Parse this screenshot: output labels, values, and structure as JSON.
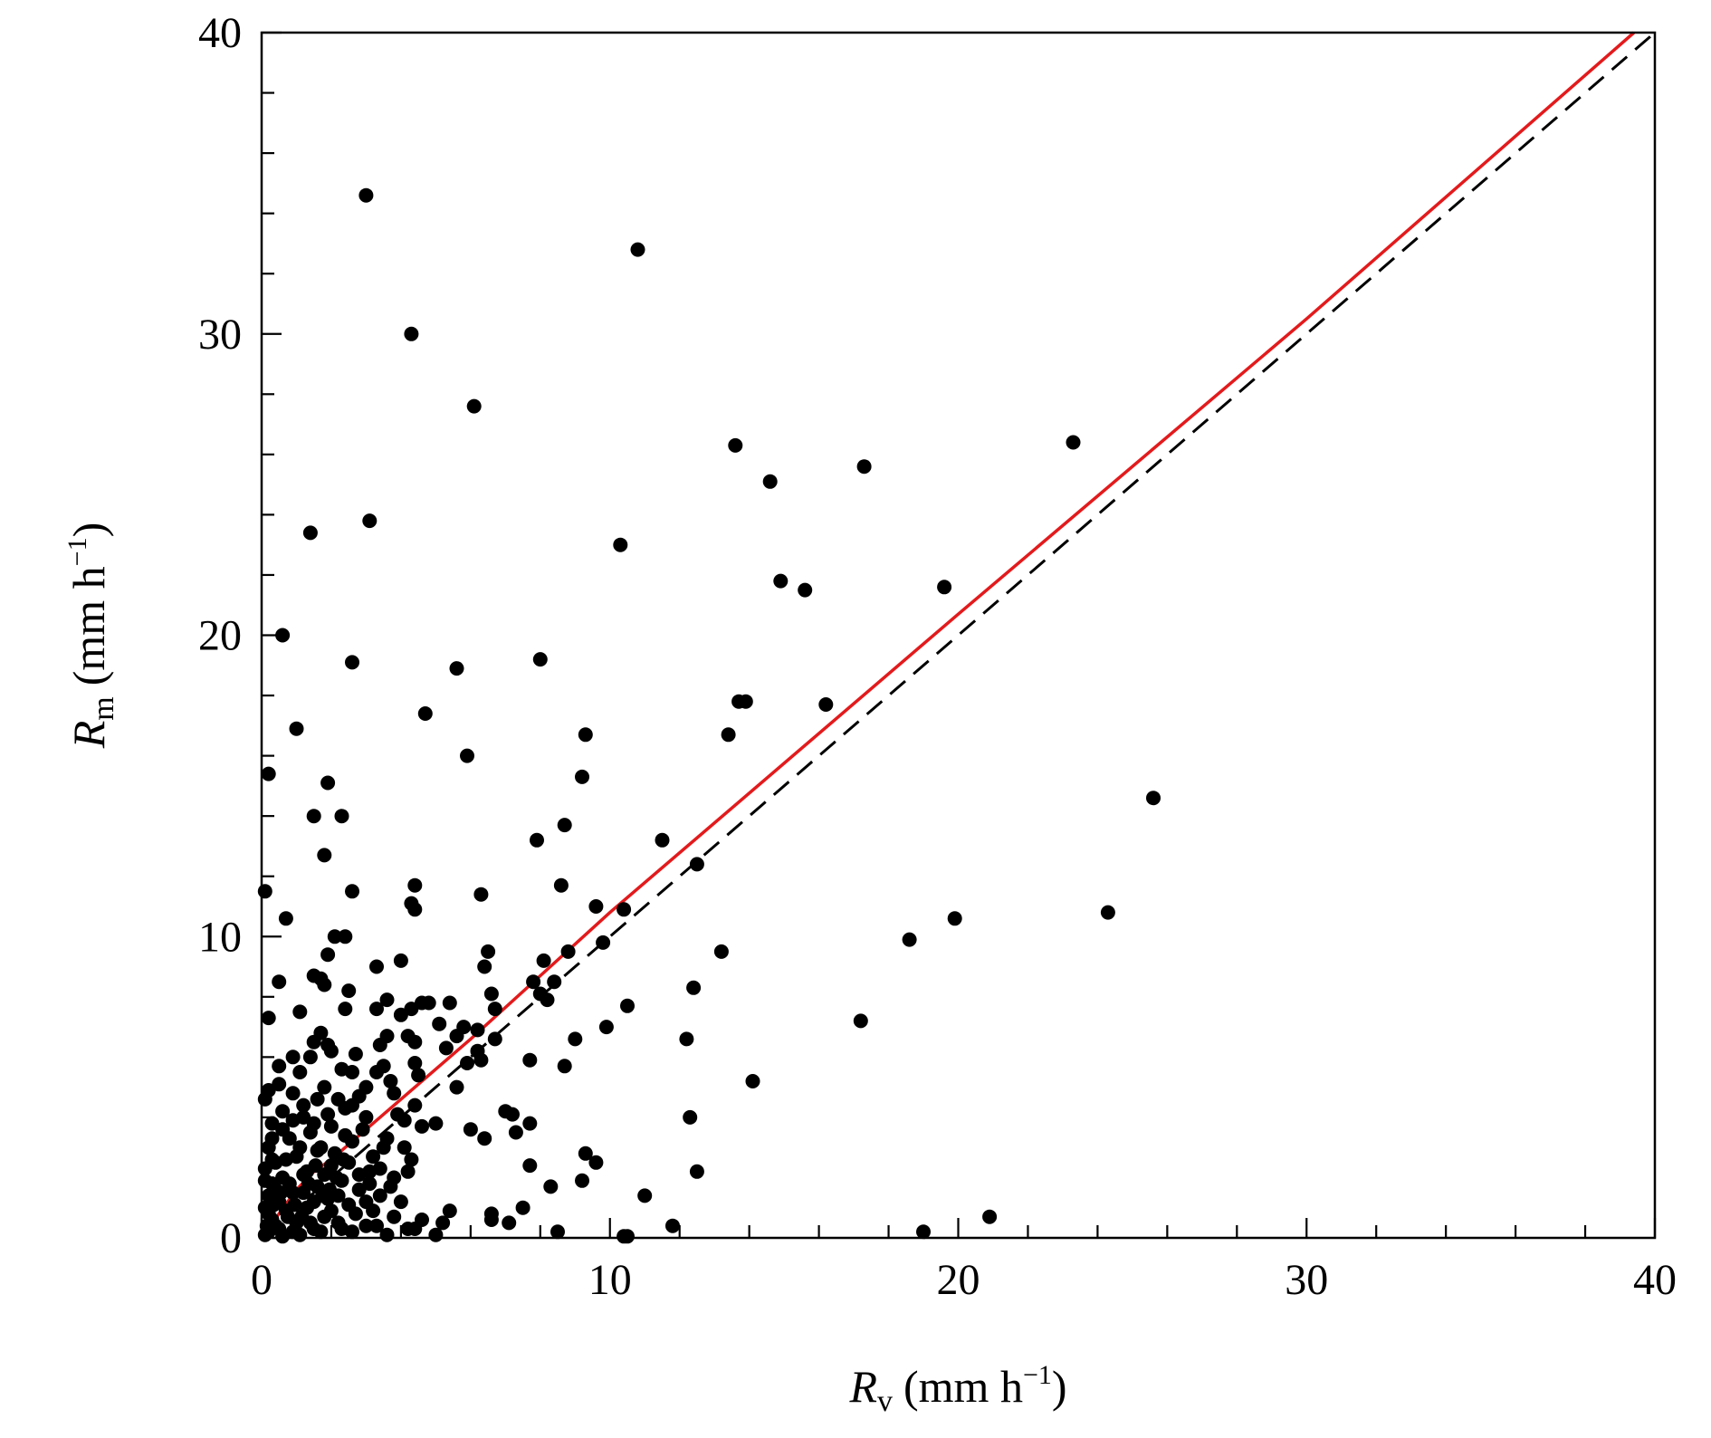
{
  "chart_data": {
    "type": "scatter",
    "xlabel": {
      "symbol": "R",
      "subscript": "v",
      "unit_pre": "(mm h",
      "unit_sup": "−1",
      "unit_post": ")"
    },
    "ylabel": {
      "symbol": "R",
      "subscript": "m",
      "unit_pre": "(mm h",
      "unit_sup": "−1",
      "unit_post": ")"
    },
    "xlim": [
      0,
      40
    ],
    "ylim": [
      0,
      40
    ],
    "x_ticks": [
      0,
      10,
      20,
      30,
      40
    ],
    "y_ticks": [
      0,
      10,
      20,
      30,
      40
    ],
    "x_tick_labels": [
      "0",
      "10",
      "20",
      "30",
      "40"
    ],
    "y_tick_labels": [
      "0",
      "10",
      "20",
      "30",
      "40"
    ],
    "minor_tick_step": 2,
    "grid": false,
    "colors": {
      "points": "#000000",
      "fit_line": "#e31a1c",
      "one_to_one": "#000000"
    },
    "reference_line": {
      "style": "dashed",
      "x": [
        0,
        40
      ],
      "y": [
        0,
        40
      ]
    },
    "fit_line": {
      "style": "solid",
      "x": [
        0,
        0.5,
        1.0,
        1.5,
        2.0,
        3.0,
        4.0,
        6.0,
        10.0,
        20.0,
        30.0,
        39.4
      ],
      "y": [
        0,
        0.8,
        1.6,
        2.2,
        2.6,
        3.6,
        4.6,
        6.6,
        10.8,
        20.7,
        30.5,
        40.0
      ]
    },
    "points": [
      [
        3.0,
        34.6
      ],
      [
        10.8,
        32.8
      ],
      [
        4.3,
        30.0
      ],
      [
        6.1,
        27.6
      ],
      [
        13.6,
        26.3
      ],
      [
        23.3,
        26.4
      ],
      [
        17.3,
        25.6
      ],
      [
        14.6,
        25.1
      ],
      [
        3.1,
        23.8
      ],
      [
        1.4,
        23.4
      ],
      [
        10.3,
        23.0
      ],
      [
        14.9,
        21.8
      ],
      [
        15.6,
        21.5
      ],
      [
        19.6,
        21.6
      ],
      [
        0.6,
        20.0
      ],
      [
        2.6,
        19.1
      ],
      [
        5.6,
        18.9
      ],
      [
        8.0,
        19.2
      ],
      [
        13.7,
        17.8
      ],
      [
        13.9,
        17.8
      ],
      [
        16.2,
        17.7
      ],
      [
        4.7,
        17.4
      ],
      [
        1.0,
        16.9
      ],
      [
        9.3,
        16.7
      ],
      [
        13.4,
        16.7
      ],
      [
        5.9,
        16.0
      ],
      [
        0.2,
        15.4
      ],
      [
        9.2,
        15.3
      ],
      [
        1.9,
        15.1
      ],
      [
        25.6,
        14.6
      ],
      [
        1.5,
        14.0
      ],
      [
        2.3,
        14.0
      ],
      [
        8.7,
        13.7
      ],
      [
        7.9,
        13.2
      ],
      [
        11.5,
        13.2
      ],
      [
        1.8,
        12.7
      ],
      [
        12.5,
        12.4
      ],
      [
        4.4,
        11.7
      ],
      [
        8.6,
        11.7
      ],
      [
        0.1,
        11.5
      ],
      [
        2.6,
        11.5
      ],
      [
        6.3,
        11.4
      ],
      [
        4.3,
        11.1
      ],
      [
        4.4,
        10.9
      ],
      [
        9.6,
        11.0
      ],
      [
        10.4,
        10.9
      ],
      [
        0.7,
        10.6
      ],
      [
        19.9,
        10.6
      ],
      [
        24.3,
        10.8
      ],
      [
        2.1,
        10.0
      ],
      [
        2.4,
        10.0
      ],
      [
        18.6,
        9.9
      ],
      [
        9.8,
        9.8
      ],
      [
        13.2,
        9.5
      ],
      [
        6.5,
        9.5
      ],
      [
        8.8,
        9.5
      ],
      [
        1.9,
        9.4
      ],
      [
        4.0,
        9.2
      ],
      [
        8.1,
        9.2
      ],
      [
        3.3,
        9.0
      ],
      [
        6.4,
        9.0
      ],
      [
        1.7,
        8.6
      ],
      [
        0.5,
        8.5
      ],
      [
        8.4,
        8.5
      ],
      [
        1.5,
        8.7
      ],
      [
        7.8,
        8.5
      ],
      [
        1.8,
        8.4
      ],
      [
        12.4,
        8.3
      ],
      [
        2.5,
        8.2
      ],
      [
        6.6,
        8.1
      ],
      [
        8.0,
        8.1
      ],
      [
        8.2,
        7.9
      ],
      [
        3.6,
        7.9
      ],
      [
        4.6,
        7.8
      ],
      [
        4.8,
        7.8
      ],
      [
        5.4,
        7.8
      ],
      [
        10.5,
        7.7
      ],
      [
        2.4,
        7.6
      ],
      [
        3.3,
        7.6
      ],
      [
        4.3,
        7.6
      ],
      [
        1.1,
        7.5
      ],
      [
        6.7,
        7.6
      ],
      [
        4.0,
        7.4
      ],
      [
        0.2,
        7.3
      ],
      [
        17.2,
        7.2
      ],
      [
        5.1,
        7.1
      ],
      [
        5.8,
        7.0
      ],
      [
        9.9,
        7.0
      ],
      [
        6.2,
        6.9
      ],
      [
        1.7,
        6.8
      ],
      [
        3.6,
        6.7
      ],
      [
        4.2,
        6.7
      ],
      [
        5.6,
        6.7
      ],
      [
        6.7,
        6.6
      ],
      [
        9.0,
        6.6
      ],
      [
        12.2,
        6.6
      ],
      [
        1.5,
        6.5
      ],
      [
        1.9,
        6.4
      ],
      [
        3.4,
        6.4
      ],
      [
        4.4,
        6.5
      ],
      [
        5.3,
        6.3
      ],
      [
        6.2,
        6.2
      ],
      [
        2.0,
        6.2
      ],
      [
        2.7,
        6.1
      ],
      [
        0.9,
        6.0
      ],
      [
        1.4,
        6.0
      ],
      [
        6.3,
        5.9
      ],
      [
        7.7,
        5.9
      ],
      [
        4.4,
        5.8
      ],
      [
        5.9,
        5.8
      ],
      [
        8.7,
        5.7
      ],
      [
        0.5,
        5.7
      ],
      [
        2.3,
        5.6
      ],
      [
        3.5,
        5.7
      ],
      [
        1.1,
        5.5
      ],
      [
        2.6,
        5.5
      ],
      [
        4.5,
        5.4
      ],
      [
        14.1,
        5.2
      ],
      [
        5.6,
        5.0
      ],
      [
        1.8,
        5.0
      ],
      [
        0.5,
        5.1
      ],
      [
        0.2,
        4.9
      ],
      [
        0.9,
        4.8
      ],
      [
        3.8,
        4.8
      ],
      [
        2.8,
        4.7
      ],
      [
        1.6,
        4.6
      ],
      [
        0.1,
        4.6
      ],
      [
        4.4,
        4.4
      ],
      [
        2.4,
        4.3
      ],
      [
        7.0,
        4.2
      ],
      [
        7.2,
        4.1
      ],
      [
        0.6,
        4.2
      ],
      [
        12.3,
        4.0
      ],
      [
        1.2,
        4.0
      ],
      [
        3.0,
        4.0
      ],
      [
        7.7,
        3.8
      ],
      [
        5.0,
        3.8
      ],
      [
        0.3,
        3.8
      ],
      [
        2.0,
        3.7
      ],
      [
        4.6,
        3.7
      ],
      [
        6.0,
        3.6
      ],
      [
        7.3,
        3.5
      ],
      [
        1.4,
        3.5
      ],
      [
        0.8,
        3.3
      ],
      [
        3.6,
        3.3
      ],
      [
        6.4,
        3.3
      ],
      [
        2.6,
        3.2
      ],
      [
        0.2,
        3.0
      ],
      [
        1.7,
        3.0
      ],
      [
        4.1,
        3.0
      ],
      [
        9.3,
        2.8
      ],
      [
        1.0,
        2.7
      ],
      [
        4.3,
        2.6
      ],
      [
        0.4,
        2.5
      ],
      [
        9.6,
        2.5
      ],
      [
        7.7,
        2.4
      ],
      [
        2.0,
        2.4
      ],
      [
        0.1,
        2.3
      ],
      [
        3.1,
        2.2
      ],
      [
        12.5,
        2.2
      ],
      [
        1.2,
        2.1
      ],
      [
        0.6,
        2.0
      ],
      [
        3.8,
        2.0
      ],
      [
        2.3,
        1.9
      ],
      [
        9.2,
        1.9
      ],
      [
        0.3,
        1.8
      ],
      [
        1.6,
        1.7
      ],
      [
        8.3,
        1.7
      ],
      [
        2.8,
        1.6
      ],
      [
        0.9,
        1.5
      ],
      [
        11.0,
        1.4
      ],
      [
        0.2,
        1.4
      ],
      [
        3.4,
        1.4
      ],
      [
        1.9,
        1.3
      ],
      [
        0.5,
        1.2
      ],
      [
        4.0,
        1.2
      ],
      [
        2.5,
        1.1
      ],
      [
        0.1,
        1.0
      ],
      [
        1.3,
        1.0
      ],
      [
        7.5,
        1.0
      ],
      [
        3.2,
        0.9
      ],
      [
        0.7,
        0.9
      ],
      [
        5.4,
        0.9
      ],
      [
        6.6,
        0.8
      ],
      [
        20.9,
        0.7
      ],
      [
        1.8,
        0.7
      ],
      [
        0.3,
        0.6
      ],
      [
        4.6,
        0.6
      ],
      [
        6.6,
        0.6
      ],
      [
        2.2,
        0.5
      ],
      [
        7.1,
        0.5
      ],
      [
        1.0,
        0.5
      ],
      [
        5.2,
        0.5
      ],
      [
        0.4,
        0.4
      ],
      [
        3.0,
        0.4
      ],
      [
        11.8,
        0.4
      ],
      [
        1.5,
        0.3
      ],
      [
        4.4,
        0.3
      ],
      [
        0.2,
        0.2
      ],
      [
        2.6,
        0.2
      ],
      [
        8.5,
        0.2
      ],
      [
        19.0,
        0.2
      ],
      [
        5.0,
        0.1
      ],
      [
        0.1,
        0.1
      ],
      [
        10.4,
        0.05
      ],
      [
        10.5,
        0.05
      ],
      [
        1.1,
        0.1
      ],
      [
        3.6,
        0.1
      ],
      [
        0.6,
        0.05
      ],
      [
        0.3,
        3.3
      ],
      [
        0.7,
        2.6
      ],
      [
        1.1,
        3.0
      ],
      [
        1.3,
        2.2
      ],
      [
        1.6,
        2.9
      ],
      [
        2.1,
        2.8
      ],
      [
        2.4,
        3.4
      ],
      [
        2.9,
        3.6
      ],
      [
        3.2,
        2.7
      ],
      [
        3.5,
        3.0
      ],
      [
        3.9,
        4.1
      ],
      [
        4.1,
        3.9
      ],
      [
        0.4,
        1.6
      ],
      [
        0.8,
        1.8
      ],
      [
        1.2,
        1.5
      ],
      [
        1.5,
        1.2
      ],
      [
        1.8,
        2.1
      ],
      [
        2.2,
        1.4
      ],
      [
        2.5,
        2.5
      ],
      [
        2.8,
        2.1
      ],
      [
        3.1,
        1.8
      ],
      [
        3.4,
        2.3
      ],
      [
        3.7,
        1.7
      ],
      [
        4.2,
        2.2
      ],
      [
        0.2,
        0.8
      ],
      [
        0.5,
        0.3
      ],
      [
        0.9,
        0.2
      ],
      [
        1.4,
        0.5
      ],
      [
        1.7,
        0.2
      ],
      [
        2.0,
        0.9
      ],
      [
        2.3,
        0.3
      ],
      [
        2.7,
        0.8
      ],
      [
        3.0,
        1.2
      ],
      [
        3.3,
        0.4
      ],
      [
        3.8,
        0.7
      ],
      [
        4.2,
        0.3
      ],
      [
        0.1,
        1.9
      ],
      [
        0.3,
        2.6
      ],
      [
        0.6,
        3.6
      ],
      [
        0.9,
        3.9
      ],
      [
        1.2,
        4.4
      ],
      [
        1.5,
        3.8
      ],
      [
        1.9,
        4.1
      ],
      [
        2.2,
        4.6
      ],
      [
        2.6,
        4.4
      ],
      [
        3.0,
        5.0
      ],
      [
        3.3,
        5.5
      ],
      [
        3.7,
        5.2
      ],
      [
        0.15,
        0.4
      ],
      [
        0.35,
        1.1
      ],
      [
        0.55,
        1.5
      ],
      [
        0.75,
        0.7
      ],
      [
        0.95,
        1.1
      ],
      [
        1.15,
        0.7
      ],
      [
        1.35,
        1.8
      ],
      [
        1.55,
        2.4
      ],
      [
        1.75,
        1.4
      ],
      [
        1.95,
        1.6
      ],
      [
        2.15,
        2.0
      ],
      [
        2.35,
        2.6
      ]
    ]
  }
}
